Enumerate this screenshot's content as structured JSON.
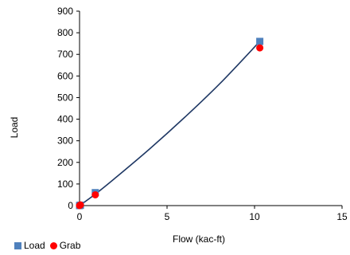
{
  "chart_data": {
    "type": "scatter",
    "xlabel": "Flow (kac-ft)",
    "ylabel": "Load",
    "xlim": [
      0,
      15
    ],
    "ylim": [
      0,
      900
    ],
    "xticks": [
      0,
      5,
      10,
      15
    ],
    "yticks": [
      0,
      100,
      200,
      300,
      400,
      500,
      600,
      700,
      800,
      900
    ],
    "grid": false,
    "legend_position": "bottom-left",
    "series": [
      {
        "name": "Load",
        "marker": "square",
        "color": "#4f81bd",
        "x": [
          0,
          0.05,
          0.9,
          10.3
        ],
        "y": [
          0,
          2,
          60,
          760
        ]
      },
      {
        "name": "Grab",
        "marker": "circle",
        "color": "#ff0000",
        "x": [
          0,
          0.05,
          0.9,
          10.3
        ],
        "y": [
          0,
          3,
          50,
          730
        ]
      }
    ],
    "fit_line": {
      "color": "#1f3864",
      "x": [
        0,
        0.9,
        2,
        4,
        6,
        8,
        10.3
      ],
      "y": [
        0,
        53,
        125,
        262,
        408,
        563,
        760
      ]
    }
  }
}
